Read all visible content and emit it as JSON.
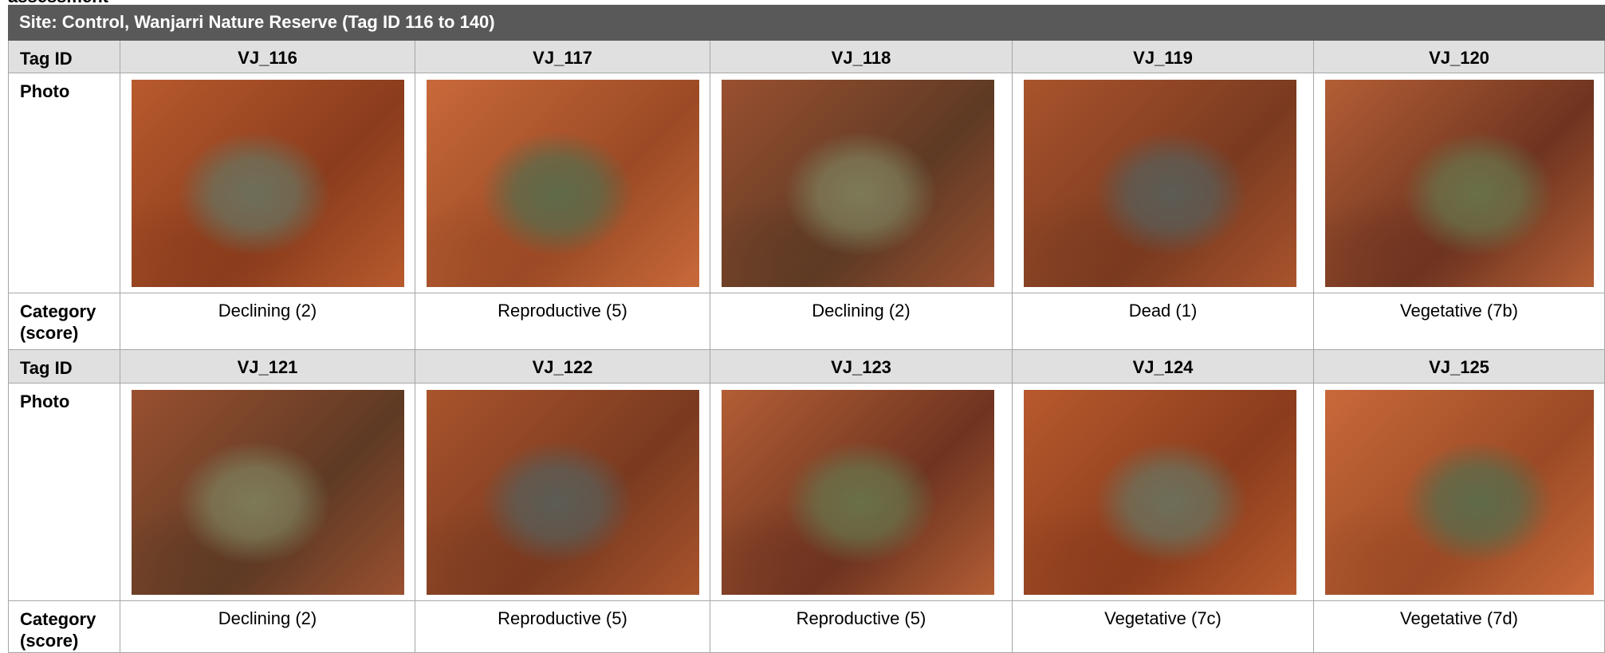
{
  "caption_fragment": "assessment",
  "site_title": "Site: Control, Wanjarri Nature Reserve (Tag ID 116 to 140)",
  "row_labels": {
    "tag": "Tag ID",
    "photo": "Photo",
    "category": "Category (score)"
  },
  "blocks": [
    {
      "tags": [
        "VJ_116",
        "VJ_117",
        "VJ_118",
        "VJ_119",
        "VJ_120"
      ],
      "categories": [
        "Declining (2)",
        "Reproductive (5)",
        "Declining (2)",
        "Dead (1)",
        "Vegetative (7b)"
      ]
    },
    {
      "tags": [
        "VJ_121",
        "VJ_122",
        "VJ_123",
        "VJ_124",
        "VJ_125"
      ],
      "categories": [
        "Declining (2)",
        "Reproductive (5)",
        "Reproductive (5)",
        "Vegetative (7c)",
        "Vegetative (7d)"
      ]
    }
  ]
}
